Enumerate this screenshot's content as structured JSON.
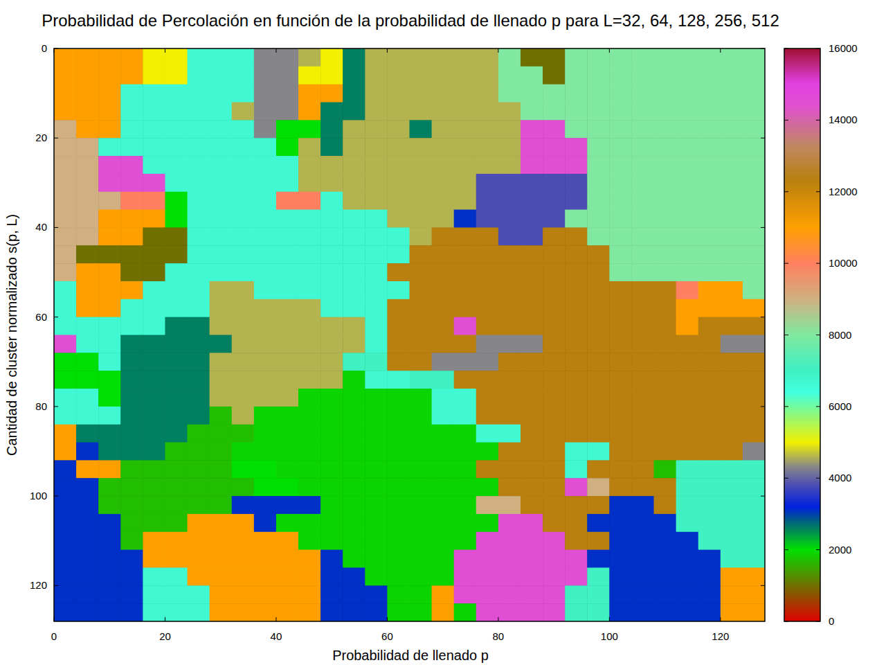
{
  "chart_data": {
    "type": "heatmap",
    "title": "Probabilidad de Percolación en función de la probabilidad de llenado p para L=32, 64, 128, 256, 512",
    "x_label": "Probabilidad de llenado p",
    "y_label": "Cantidad de cluster normalizado s(p, L)",
    "xlim": [
      0,
      128
    ],
    "ylim": [
      0,
      128
    ],
    "xticks": [
      0,
      20,
      40,
      60,
      80,
      100,
      120
    ],
    "yticks": [
      0,
      20,
      40,
      60,
      80,
      100,
      120
    ],
    "zlim": [
      0,
      16000
    ],
    "zticks": [
      0,
      2000,
      4000,
      6000,
      8000,
      10000,
      12000,
      14000,
      16000
    ],
    "cells": [
      [
        11000,
        11000,
        11000,
        11000,
        5000,
        5000,
        6700,
        6700,
        6700,
        4300,
        4300,
        4600,
        5000,
        2600,
        4600,
        4600,
        4600,
        4600,
        4600,
        4600,
        8000,
        1000,
        1000,
        8000,
        8000,
        8000,
        8000,
        8000,
        8000,
        8000,
        8000,
        8000
      ],
      [
        11000,
        11000,
        11000,
        11000,
        5000,
        5000,
        6700,
        6700,
        6700,
        4300,
        4300,
        5000,
        5000,
        2600,
        4600,
        4600,
        4600,
        4600,
        4600,
        4600,
        8000,
        8000,
        1000,
        8000,
        8000,
        8000,
        8000,
        8000,
        8000,
        8000,
        8000,
        8000
      ],
      [
        11000,
        11000,
        11000,
        6700,
        6700,
        6700,
        6700,
        6700,
        6700,
        4300,
        4300,
        11000,
        11000,
        2600,
        4600,
        4600,
        4600,
        4600,
        4600,
        4600,
        8000,
        8000,
        8000,
        8000,
        8000,
        8000,
        8000,
        8000,
        8000,
        8000,
        8000,
        8000
      ],
      [
        11000,
        11000,
        11000,
        6700,
        6700,
        6700,
        6700,
        6700,
        4600,
        4300,
        4300,
        11000,
        2600,
        2600,
        4600,
        4600,
        4600,
        4600,
        4600,
        4600,
        4600,
        8000,
        8000,
        8000,
        8000,
        8000,
        8000,
        8000,
        8000,
        8000,
        8000,
        8000
      ],
      [
        9000,
        11000,
        11000,
        6700,
        6700,
        6700,
        6700,
        6700,
        6700,
        4300,
        2000,
        2000,
        2600,
        4600,
        4600,
        4600,
        2600,
        4600,
        4600,
        4600,
        4600,
        14500,
        14500,
        8000,
        8000,
        8000,
        8000,
        8000,
        8000,
        8000,
        8000,
        8000
      ],
      [
        9000,
        9000,
        6700,
        6700,
        6700,
        6700,
        6700,
        6700,
        6700,
        6700,
        2000,
        4600,
        2600,
        4600,
        4600,
        4600,
        4600,
        4600,
        4600,
        4600,
        4600,
        14500,
        14500,
        14500,
        8000,
        8000,
        8000,
        8000,
        8000,
        8000,
        8000,
        8000
      ],
      [
        9000,
        9000,
        14500,
        14500,
        6700,
        6700,
        6700,
        6700,
        6700,
        6700,
        6700,
        4600,
        4600,
        4600,
        4600,
        4600,
        4600,
        4600,
        4600,
        4600,
        4600,
        14500,
        14500,
        14500,
        8000,
        8000,
        8000,
        8000,
        8000,
        8000,
        8000,
        8000
      ],
      [
        9000,
        9000,
        14500,
        14500,
        14500,
        6700,
        6700,
        6700,
        6700,
        6700,
        6700,
        4600,
        4600,
        4600,
        4600,
        4600,
        4600,
        4600,
        4600,
        3800,
        3800,
        3800,
        3800,
        3800,
        8000,
        8000,
        8000,
        8000,
        8000,
        8000,
        8000,
        8000
      ],
      [
        9000,
        9000,
        9000,
        10000,
        10000,
        2000,
        6700,
        6700,
        6700,
        6700,
        10000,
        10000,
        6700,
        4600,
        4600,
        4600,
        4600,
        4600,
        4600,
        3800,
        3800,
        3800,
        3800,
        3800,
        8000,
        8000,
        8000,
        8000,
        8000,
        8000,
        8000,
        8000
      ],
      [
        9000,
        9000,
        11000,
        11000,
        11000,
        2000,
        6700,
        6700,
        6700,
        6700,
        6700,
        6700,
        6700,
        6700,
        6700,
        4600,
        4600,
        4600,
        3100,
        3800,
        3800,
        3800,
        3800,
        8000,
        8000,
        8000,
        8000,
        8000,
        8000,
        8000,
        8000,
        8000
      ],
      [
        9000,
        9000,
        11000,
        11000,
        1000,
        1000,
        6700,
        6700,
        6700,
        6700,
        6700,
        6700,
        6700,
        6700,
        6700,
        6700,
        4600,
        12300,
        12300,
        12300,
        3800,
        3800,
        12300,
        12300,
        8000,
        8000,
        8000,
        8000,
        8000,
        8000,
        8000,
        8000
      ],
      [
        9000,
        1000,
        1000,
        1000,
        1000,
        1000,
        6700,
        6700,
        6700,
        6700,
        6700,
        6700,
        6700,
        6700,
        6700,
        6700,
        12300,
        12300,
        12300,
        12300,
        12300,
        12300,
        12300,
        12300,
        12300,
        8000,
        8000,
        8000,
        8000,
        8000,
        8000,
        8000
      ],
      [
        9000,
        11000,
        11000,
        1000,
        1000,
        6700,
        6700,
        6700,
        6700,
        6700,
        6700,
        6700,
        6700,
        6700,
        6700,
        12300,
        12300,
        12300,
        12300,
        12300,
        12300,
        12300,
        12300,
        12300,
        12300,
        8000,
        8000,
        8000,
        8000,
        8000,
        8000,
        8000
      ],
      [
        6700,
        11000,
        11000,
        11000,
        6700,
        6700,
        6700,
        4600,
        4600,
        6700,
        6700,
        6700,
        6700,
        6700,
        6700,
        6700,
        12300,
        12300,
        12300,
        12300,
        12300,
        12300,
        12300,
        12300,
        12300,
        12300,
        12300,
        12300,
        10000,
        11000,
        11000,
        8000
      ],
      [
        6700,
        11000,
        11000,
        6700,
        6700,
        6700,
        6700,
        4600,
        4600,
        4600,
        4600,
        4600,
        6700,
        6700,
        6700,
        12300,
        12300,
        12300,
        12300,
        12300,
        12300,
        12300,
        12300,
        12300,
        12300,
        12300,
        12300,
        12300,
        11000,
        11000,
        11000,
        11000
      ],
      [
        6700,
        6700,
        6700,
        6700,
        6700,
        2600,
        2600,
        4600,
        4600,
        4600,
        4600,
        4600,
        4600,
        4600,
        6700,
        12300,
        12300,
        12300,
        14500,
        12300,
        12300,
        12300,
        12300,
        12300,
        12300,
        12300,
        12300,
        12300,
        11000,
        12300,
        12300,
        12300
      ],
      [
        14500,
        6700,
        6700,
        2600,
        2600,
        2600,
        2600,
        2600,
        4600,
        4600,
        4600,
        4600,
        4600,
        4600,
        6700,
        12300,
        12300,
        12300,
        12300,
        4300,
        4300,
        4300,
        12300,
        12300,
        12300,
        12300,
        12300,
        12300,
        12300,
        12300,
        4300,
        4300
      ],
      [
        2000,
        2000,
        6700,
        2600,
        2600,
        2600,
        2600,
        4600,
        4600,
        4600,
        4600,
        4600,
        4600,
        7000,
        7000,
        12300,
        12300,
        4300,
        4300,
        4300,
        12300,
        12300,
        12300,
        12300,
        12300,
        12300,
        12300,
        12300,
        12300,
        12300,
        12300,
        12300
      ],
      [
        2000,
        2000,
        2000,
        2600,
        2600,
        2600,
        2600,
        4600,
        4600,
        4600,
        4600,
        4600,
        4600,
        1900,
        6700,
        6700,
        7000,
        7000,
        12300,
        12300,
        12300,
        12300,
        12300,
        12300,
        12300,
        12300,
        12300,
        12300,
        12300,
        12300,
        12300,
        12300
      ],
      [
        6700,
        6700,
        2000,
        2600,
        2600,
        2600,
        2600,
        4600,
        4600,
        4600,
        4600,
        1900,
        1900,
        1900,
        1900,
        1900,
        1900,
        6700,
        6700,
        12300,
        12300,
        12300,
        12300,
        12300,
        12300,
        12300,
        12300,
        12300,
        12300,
        12300,
        12300,
        12300
      ],
      [
        6700,
        6700,
        6700,
        2600,
        2600,
        2600,
        2600,
        1700,
        4600,
        1900,
        1900,
        1900,
        1900,
        1900,
        1900,
        1900,
        1900,
        6700,
        6700,
        12300,
        12300,
        12300,
        12300,
        12300,
        12300,
        12300,
        12300,
        12300,
        12300,
        12300,
        12300,
        12300
      ],
      [
        11000,
        2600,
        2600,
        2600,
        2600,
        2600,
        1700,
        1700,
        1700,
        1900,
        1900,
        1900,
        1900,
        1900,
        1900,
        1900,
        1900,
        1900,
        1900,
        6700,
        6700,
        12300,
        12300,
        12300,
        12300,
        12300,
        12300,
        12300,
        12300,
        12300,
        12300,
        12300
      ],
      [
        11000,
        3100,
        2600,
        2600,
        2600,
        1700,
        1700,
        1700,
        1900,
        1900,
        1900,
        1900,
        1900,
        1900,
        1900,
        1900,
        1900,
        1900,
        1900,
        1900,
        12300,
        12300,
        12300,
        6700,
        6700,
        12300,
        12300,
        12300,
        12300,
        12300,
        12300,
        4300
      ],
      [
        3100,
        11000,
        11000,
        1700,
        1700,
        1700,
        1700,
        1700,
        2000,
        2000,
        1900,
        1900,
        1900,
        1900,
        1900,
        1900,
        1900,
        1900,
        1900,
        12300,
        12300,
        12300,
        12300,
        6700,
        12300,
        12300,
        12300,
        1700,
        7000,
        7000,
        7000,
        7000
      ],
      [
        3100,
        3100,
        1700,
        1700,
        1700,
        1700,
        1700,
        1700,
        1700,
        2000,
        2000,
        1900,
        1900,
        1900,
        1900,
        1900,
        1900,
        1900,
        1900,
        1900,
        12300,
        12300,
        12300,
        14500,
        9000,
        12300,
        12300,
        12300,
        7000,
        7000,
        7000,
        7000
      ],
      [
        3100,
        3100,
        1700,
        1700,
        1700,
        1700,
        1700,
        1700,
        3100,
        3100,
        3100,
        3100,
        1900,
        1900,
        1900,
        1900,
        1900,
        1900,
        1900,
        9000,
        9000,
        12300,
        12300,
        12300,
        12300,
        3100,
        3100,
        12300,
        7000,
        7000,
        7000,
        7000
      ],
      [
        3100,
        3100,
        3100,
        1700,
        1700,
        1700,
        11000,
        11000,
        11000,
        3100,
        1900,
        1900,
        1900,
        1900,
        1900,
        1900,
        1900,
        1900,
        1900,
        1900,
        14500,
        14500,
        12300,
        12300,
        3100,
        3100,
        3100,
        3100,
        7000,
        7000,
        7000,
        7000
      ],
      [
        3100,
        3100,
        3100,
        1700,
        11000,
        11000,
        11000,
        11000,
        11000,
        11000,
        11000,
        1900,
        1900,
        1900,
        1900,
        1900,
        1900,
        1900,
        1900,
        14500,
        14500,
        14500,
        14500,
        12300,
        12300,
        3100,
        3100,
        3100,
        3100,
        7000,
        7000,
        7000
      ],
      [
        3100,
        3100,
        3100,
        3100,
        11000,
        11000,
        11000,
        11000,
        11000,
        11000,
        11000,
        11000,
        3100,
        1900,
        1900,
        1900,
        1900,
        1900,
        14500,
        14500,
        14500,
        14500,
        14500,
        14500,
        3100,
        3100,
        3100,
        3100,
        3100,
        3100,
        7000,
        7000
      ],
      [
        3100,
        3100,
        3100,
        3100,
        6700,
        6700,
        11000,
        11000,
        11000,
        11000,
        11000,
        11000,
        3100,
        3100,
        1900,
        1900,
        1900,
        1900,
        14500,
        14500,
        14500,
        14500,
        14500,
        14500,
        7000,
        3100,
        3100,
        3100,
        3100,
        3100,
        11000,
        11000
      ],
      [
        3100,
        3100,
        3100,
        3100,
        6700,
        6700,
        6700,
        11000,
        11000,
        11000,
        11000,
        11000,
        3100,
        3100,
        3100,
        1900,
        1900,
        11000,
        14500,
        14500,
        14500,
        14500,
        14500,
        7000,
        7000,
        3100,
        3100,
        3100,
        3100,
        3100,
        11000,
        11000
      ],
      [
        3100,
        3100,
        3100,
        3100,
        6700,
        6700,
        6700,
        11000,
        11000,
        11000,
        11000,
        11000,
        3100,
        3100,
        3100,
        1900,
        1900,
        11000,
        1900,
        14500,
        14500,
        14500,
        14500,
        7000,
        7000,
        3100,
        3100,
        3100,
        3100,
        3100,
        11000,
        11000
      ]
    ]
  }
}
